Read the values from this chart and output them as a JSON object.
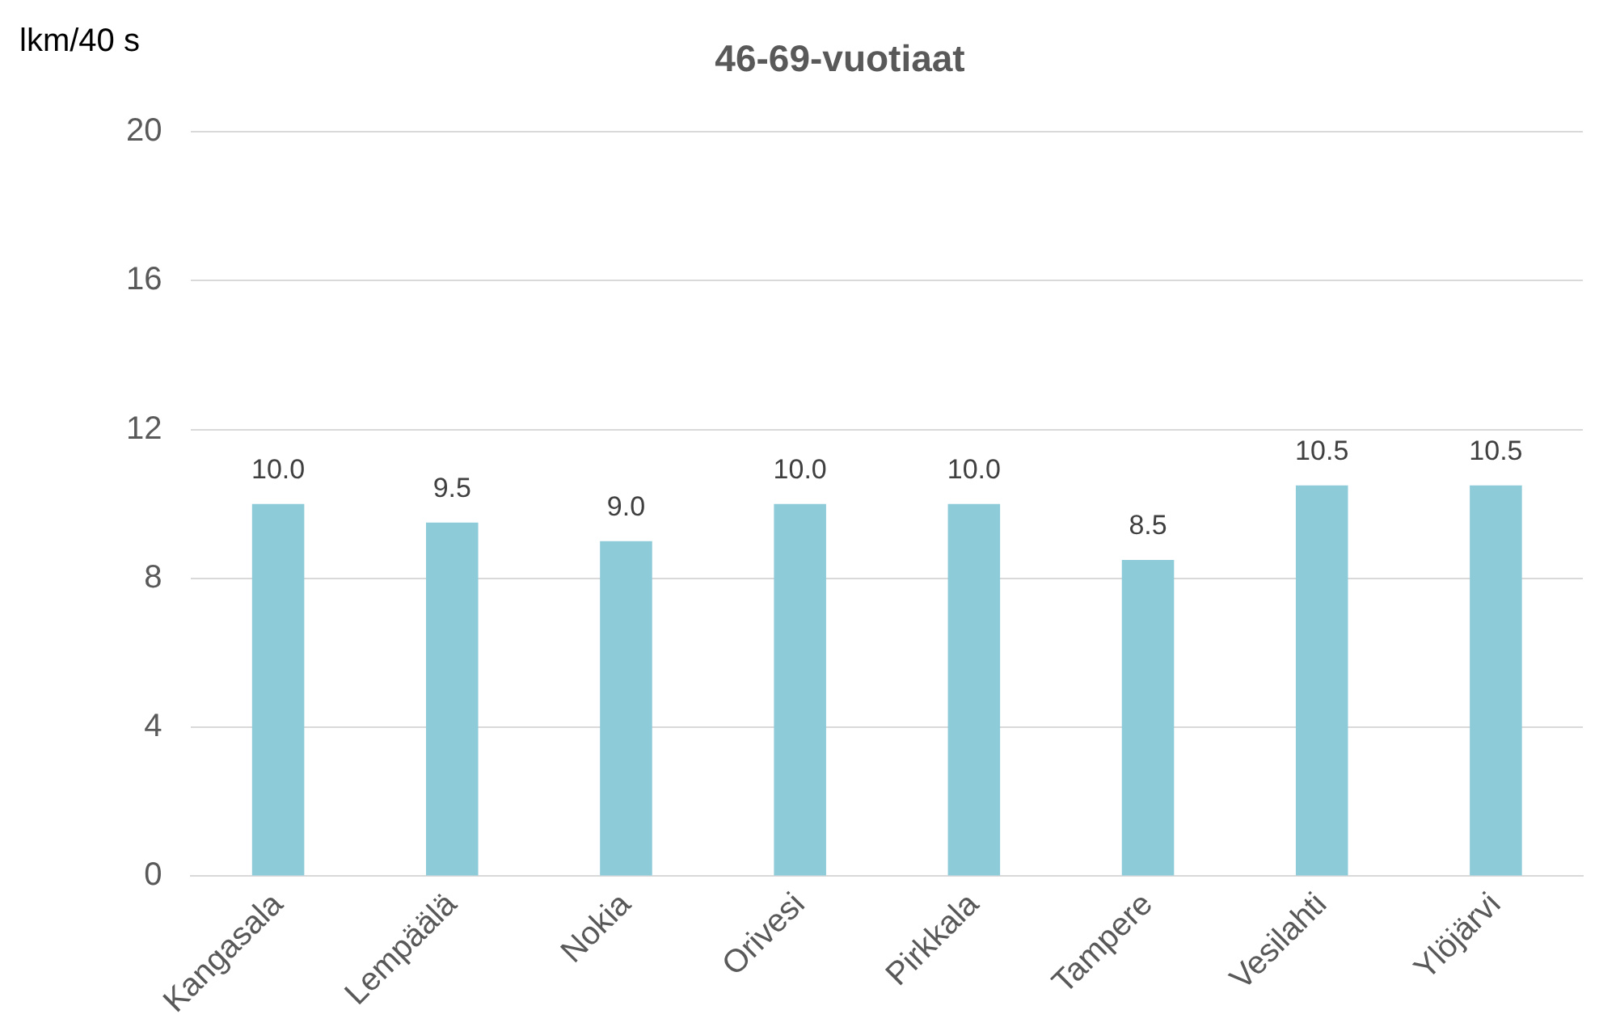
{
  "chart_data": {
    "type": "bar",
    "title": "46-69-vuotiaat",
    "ylabel": "lkm/40 s",
    "categories": [
      "Kangasala",
      "Lempäälä",
      "Nokia",
      "Orivesi",
      "Pirkkala",
      "Tampere",
      "Vesilahti",
      "Ylöjärvi"
    ],
    "values": [
      10.0,
      9.5,
      9.0,
      10.0,
      10.0,
      8.5,
      10.5,
      10.5
    ],
    "value_labels": [
      "10.0",
      "9.5",
      "9.0",
      "10.0",
      "10.0",
      "8.5",
      "10.5",
      "10.5"
    ],
    "color": "#8ecbd9",
    "ylim": [
      0,
      20
    ],
    "yticks": [
      0,
      4,
      8,
      12,
      16,
      20
    ],
    "grid": "y"
  }
}
